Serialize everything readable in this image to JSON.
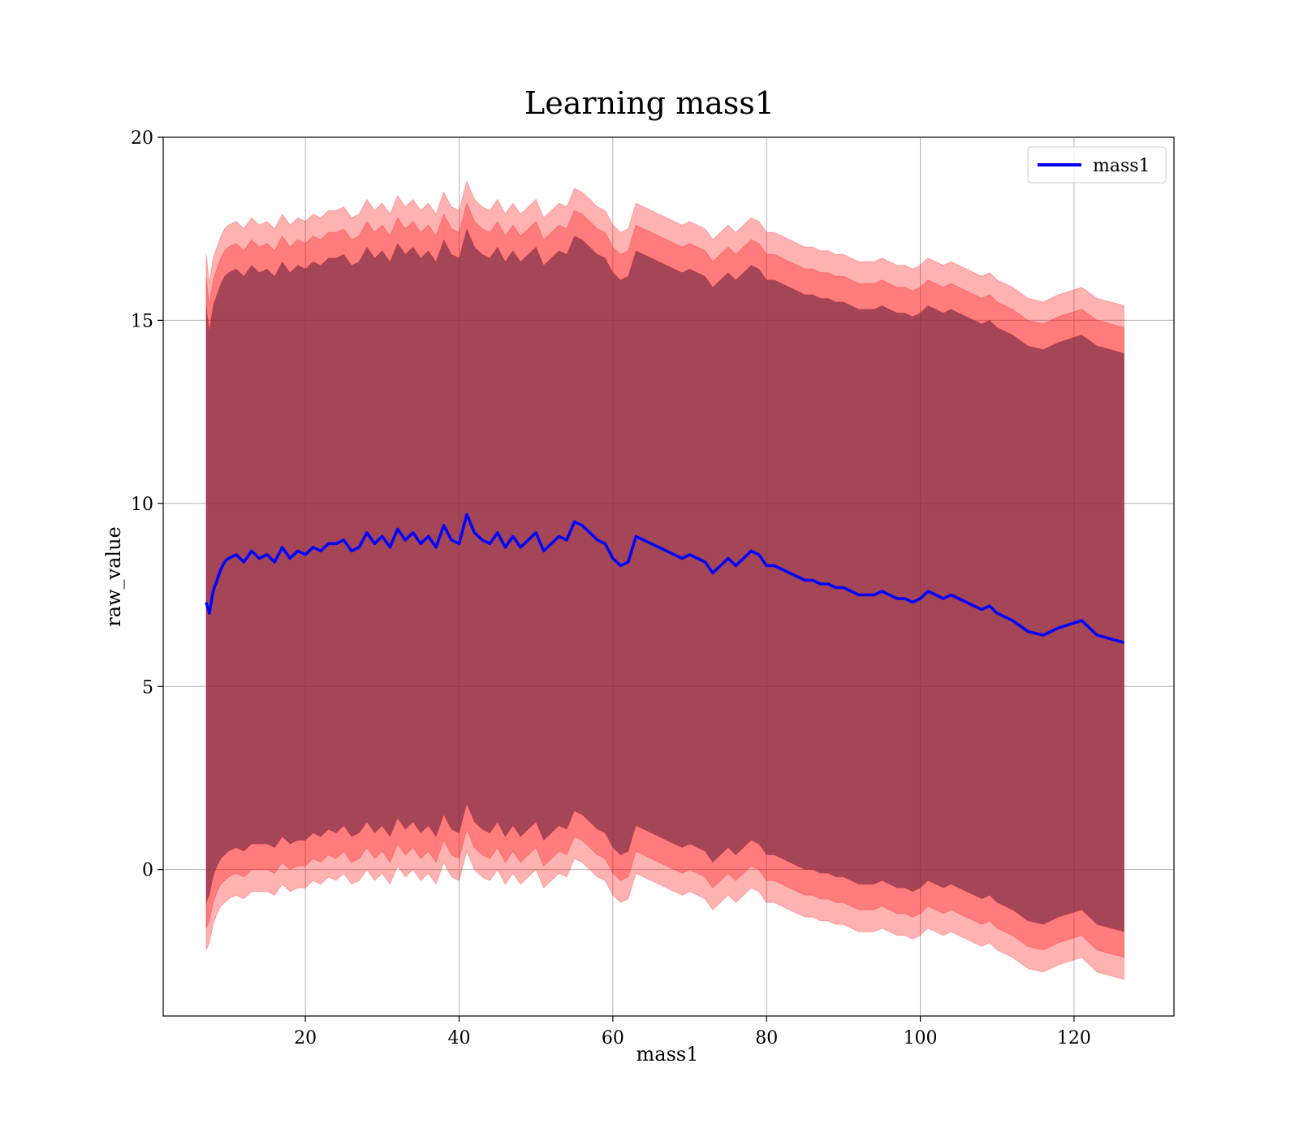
{
  "chart_data": {
    "type": "line",
    "title": "Learning mass1",
    "xlabel": "mass1",
    "ylabel": "raw_value",
    "xlim": [
      1.5,
      133
    ],
    "ylim": [
      -4.0,
      20.0
    ],
    "xticks": [
      20,
      40,
      60,
      80,
      100,
      120
    ],
    "yticks": [
      0,
      5,
      10,
      15,
      20
    ],
    "grid": true,
    "legend_position": "top-right",
    "colors": {
      "line": "#0000ff",
      "band": "#ff0000",
      "grid": "#b0b0b0"
    },
    "series": [
      {
        "name": "mass1",
        "x": [
          7.1,
          7.5,
          8,
          8.5,
          9,
          9.5,
          10,
          11,
          12,
          13,
          14,
          15,
          16,
          17,
          18,
          19,
          20,
          21,
          22,
          23,
          24,
          25,
          26,
          27,
          28,
          29,
          30,
          31,
          32,
          33,
          34,
          35,
          36,
          37,
          38,
          39,
          40,
          41,
          42,
          43,
          44,
          45,
          46,
          47,
          48,
          49,
          50,
          51,
          52,
          53,
          54,
          55,
          56,
          57,
          58,
          59,
          60,
          61,
          62,
          63,
          64,
          65,
          66,
          67,
          68,
          69,
          70,
          71,
          72,
          73,
          74,
          75,
          76,
          77,
          78,
          79,
          80,
          81,
          82,
          83,
          84,
          85,
          86,
          87,
          88,
          89,
          90,
          91,
          92,
          93,
          94,
          95,
          96,
          97,
          98,
          99,
          100,
          101,
          102,
          103,
          104,
          105,
          106,
          107,
          108,
          109,
          110,
          112,
          114,
          116,
          118,
          121,
          123,
          126.5
        ],
        "values": [
          7.3,
          7.0,
          7.6,
          7.9,
          8.2,
          8.4,
          8.5,
          8.6,
          8.4,
          8.7,
          8.5,
          8.6,
          8.4,
          8.8,
          8.5,
          8.7,
          8.6,
          8.8,
          8.7,
          8.9,
          8.9,
          9.0,
          8.7,
          8.8,
          9.2,
          8.9,
          9.1,
          8.8,
          9.3,
          9.0,
          9.2,
          8.9,
          9.1,
          8.8,
          9.4,
          9.0,
          8.9,
          9.7,
          9.2,
          9.0,
          8.9,
          9.2,
          8.8,
          9.1,
          8.8,
          9.0,
          9.2,
          8.7,
          8.9,
          9.1,
          9.0,
          9.5,
          9.4,
          9.2,
          9.0,
          8.9,
          8.5,
          8.3,
          8.4,
          9.1,
          9.0,
          8.9,
          8.8,
          8.7,
          8.6,
          8.5,
          8.6,
          8.5,
          8.4,
          8.1,
          8.3,
          8.5,
          8.3,
          8.5,
          8.7,
          8.6,
          8.3,
          8.3,
          8.2,
          8.1,
          8.0,
          7.9,
          7.9,
          7.8,
          7.8,
          7.7,
          7.7,
          7.6,
          7.5,
          7.5,
          7.5,
          7.6,
          7.5,
          7.4,
          7.4,
          7.3,
          7.4,
          7.6,
          7.5,
          7.4,
          7.5,
          7.4,
          7.3,
          7.2,
          7.1,
          7.2,
          7.0,
          6.8,
          6.5,
          6.4,
          6.6,
          6.8,
          6.4,
          6.2
        ]
      }
    ],
    "bands": [
      {
        "lower": [
          -2.2,
          -2.0,
          -1.5,
          -1.2,
          -1.0,
          -0.9,
          -0.8,
          -0.7,
          -0.8,
          -0.6,
          -0.6,
          -0.6,
          -0.7,
          -0.4,
          -0.6,
          -0.5,
          -0.5,
          -0.3,
          -0.4,
          -0.2,
          -0.3,
          -0.1,
          -0.4,
          -0.3,
          0.0,
          -0.3,
          -0.1,
          -0.4,
          0.1,
          -0.2,
          0.0,
          -0.3,
          -0.1,
          -0.4,
          0.2,
          -0.2,
          -0.3,
          0.5,
          0.0,
          -0.2,
          -0.3,
          0.0,
          -0.4,
          -0.1,
          -0.4,
          -0.2,
          0.0,
          -0.5,
          -0.3,
          -0.1,
          -0.2,
          0.3,
          0.2,
          0.0,
          -0.2,
          -0.3,
          -0.7,
          -0.9,
          -0.8,
          -0.1,
          -0.2,
          -0.3,
          -0.4,
          -0.5,
          -0.6,
          -0.7,
          -0.6,
          -0.7,
          -0.8,
          -1.1,
          -0.9,
          -0.7,
          -0.9,
          -0.7,
          -0.5,
          -0.6,
          -0.9,
          -0.9,
          -1.0,
          -1.1,
          -1.2,
          -1.3,
          -1.3,
          -1.4,
          -1.4,
          -1.5,
          -1.5,
          -1.6,
          -1.7,
          -1.7,
          -1.7,
          -1.6,
          -1.7,
          -1.8,
          -1.8,
          -1.9,
          -1.8,
          -1.6,
          -1.7,
          -1.8,
          -1.7,
          -1.8,
          -1.9,
          -2.0,
          -2.1,
          -2.0,
          -2.2,
          -2.4,
          -2.7,
          -2.8,
          -2.6,
          -2.4,
          -2.8,
          -3.0
        ],
        "upper": [
          16.8,
          16.0,
          16.7,
          17.0,
          17.3,
          17.5,
          17.6,
          17.7,
          17.5,
          17.8,
          17.6,
          17.7,
          17.5,
          17.9,
          17.6,
          17.8,
          17.7,
          17.9,
          17.8,
          18.0,
          18.0,
          18.1,
          17.8,
          17.9,
          18.3,
          18.0,
          18.2,
          17.9,
          18.4,
          18.1,
          18.3,
          18.0,
          18.2,
          17.9,
          18.5,
          18.1,
          18.0,
          18.8,
          18.3,
          18.1,
          18.0,
          18.3,
          17.9,
          18.2,
          17.9,
          18.1,
          18.3,
          17.8,
          18.0,
          18.2,
          18.1,
          18.6,
          18.5,
          18.3,
          18.1,
          18.0,
          17.6,
          17.4,
          17.5,
          18.2,
          18.1,
          18.0,
          17.9,
          17.8,
          17.7,
          17.6,
          17.7,
          17.6,
          17.5,
          17.2,
          17.4,
          17.6,
          17.4,
          17.6,
          17.8,
          17.7,
          17.4,
          17.4,
          17.3,
          17.2,
          17.1,
          17.0,
          17.0,
          16.9,
          16.9,
          16.8,
          16.8,
          16.7,
          16.6,
          16.6,
          16.6,
          16.7,
          16.6,
          16.5,
          16.5,
          16.4,
          16.5,
          16.7,
          16.6,
          16.5,
          16.6,
          16.5,
          16.4,
          16.3,
          16.2,
          16.3,
          16.1,
          15.9,
          15.6,
          15.5,
          15.7,
          15.9,
          15.6,
          15.4
        ]
      },
      {
        "lower": [
          -1.6,
          -1.4,
          -0.9,
          -0.6,
          -0.4,
          -0.3,
          -0.2,
          -0.1,
          -0.2,
          0.0,
          0.0,
          0.0,
          -0.1,
          0.2,
          0.0,
          0.1,
          0.1,
          0.3,
          0.2,
          0.4,
          0.3,
          0.5,
          0.2,
          0.3,
          0.6,
          0.3,
          0.5,
          0.2,
          0.7,
          0.4,
          0.6,
          0.3,
          0.5,
          0.2,
          0.8,
          0.4,
          0.3,
          1.1,
          0.6,
          0.4,
          0.3,
          0.6,
          0.2,
          0.5,
          0.2,
          0.4,
          0.6,
          0.1,
          0.3,
          0.5,
          0.4,
          0.9,
          0.8,
          0.6,
          0.4,
          0.3,
          -0.1,
          -0.3,
          -0.2,
          0.5,
          0.4,
          0.3,
          0.2,
          0.1,
          0.0,
          -0.1,
          0.0,
          -0.1,
          -0.2,
          -0.5,
          -0.3,
          -0.1,
          -0.3,
          -0.1,
          0.1,
          0.0,
          -0.3,
          -0.3,
          -0.4,
          -0.5,
          -0.6,
          -0.7,
          -0.7,
          -0.8,
          -0.8,
          -0.9,
          -0.9,
          -1.0,
          -1.1,
          -1.1,
          -1.1,
          -1.0,
          -1.1,
          -1.2,
          -1.2,
          -1.3,
          -1.2,
          -1.0,
          -1.1,
          -1.2,
          -1.1,
          -1.2,
          -1.3,
          -1.4,
          -1.5,
          -1.4,
          -1.6,
          -1.8,
          -2.1,
          -2.2,
          -2.0,
          -1.8,
          -2.2,
          -2.4
        ],
        "upper": [
          16.2,
          15.4,
          16.1,
          16.4,
          16.7,
          16.9,
          17.0,
          17.1,
          16.9,
          17.2,
          17.0,
          17.1,
          16.9,
          17.3,
          17.0,
          17.2,
          17.1,
          17.3,
          17.2,
          17.4,
          17.4,
          17.5,
          17.2,
          17.3,
          17.7,
          17.4,
          17.6,
          17.3,
          17.8,
          17.5,
          17.7,
          17.4,
          17.6,
          17.3,
          17.9,
          17.5,
          17.4,
          18.2,
          17.7,
          17.5,
          17.4,
          17.7,
          17.3,
          17.6,
          17.3,
          17.5,
          17.7,
          17.2,
          17.4,
          17.6,
          17.5,
          18.0,
          17.9,
          17.7,
          17.5,
          17.4,
          17.0,
          16.8,
          16.9,
          17.6,
          17.5,
          17.4,
          17.3,
          17.2,
          17.1,
          17.0,
          17.1,
          17.0,
          16.9,
          16.6,
          16.8,
          17.0,
          16.8,
          17.0,
          17.2,
          17.1,
          16.8,
          16.8,
          16.7,
          16.6,
          16.5,
          16.4,
          16.4,
          16.3,
          16.3,
          16.2,
          16.2,
          16.1,
          16.0,
          16.0,
          16.0,
          16.1,
          16.0,
          15.9,
          15.9,
          15.8,
          15.9,
          16.1,
          16.0,
          15.9,
          16.0,
          15.9,
          15.8,
          15.7,
          15.6,
          15.7,
          15.5,
          15.3,
          15.0,
          14.9,
          15.1,
          15.3,
          15.0,
          14.8
        ]
      },
      {
        "lower": [
          -0.9,
          -0.7,
          -0.2,
          0.1,
          0.3,
          0.4,
          0.5,
          0.6,
          0.5,
          0.7,
          0.7,
          0.7,
          0.6,
          0.9,
          0.7,
          0.8,
          0.8,
          1.0,
          0.9,
          1.1,
          1.0,
          1.2,
          0.9,
          1.0,
          1.3,
          1.0,
          1.2,
          0.9,
          1.4,
          1.1,
          1.3,
          1.0,
          1.2,
          0.9,
          1.5,
          1.1,
          1.0,
          1.8,
          1.3,
          1.1,
          1.0,
          1.3,
          0.9,
          1.2,
          0.9,
          1.1,
          1.3,
          0.8,
          1.0,
          1.2,
          1.1,
          1.6,
          1.5,
          1.3,
          1.1,
          1.0,
          0.6,
          0.4,
          0.5,
          1.2,
          1.1,
          1.0,
          0.9,
          0.8,
          0.7,
          0.6,
          0.7,
          0.6,
          0.5,
          0.2,
          0.4,
          0.6,
          0.4,
          0.6,
          0.8,
          0.7,
          0.4,
          0.4,
          0.3,
          0.2,
          0.1,
          0.0,
          0.0,
          -0.1,
          -0.1,
          -0.2,
          -0.2,
          -0.3,
          -0.4,
          -0.4,
          -0.4,
          -0.3,
          -0.4,
          -0.5,
          -0.5,
          -0.6,
          -0.5,
          -0.3,
          -0.4,
          -0.5,
          -0.4,
          -0.5,
          -0.6,
          -0.7,
          -0.8,
          -0.7,
          -0.9,
          -1.1,
          -1.4,
          -1.5,
          -1.3,
          -1.1,
          -1.5,
          -1.7
        ],
        "upper": [
          15.4,
          14.7,
          15.4,
          15.7,
          16.0,
          16.2,
          16.3,
          16.4,
          16.2,
          16.5,
          16.3,
          16.4,
          16.2,
          16.6,
          16.3,
          16.5,
          16.4,
          16.6,
          16.5,
          16.7,
          16.7,
          16.8,
          16.5,
          16.6,
          17.0,
          16.7,
          16.9,
          16.6,
          17.1,
          16.8,
          17.0,
          16.7,
          16.9,
          16.6,
          17.2,
          16.8,
          16.7,
          17.5,
          17.0,
          16.8,
          16.7,
          17.0,
          16.6,
          16.9,
          16.6,
          16.8,
          17.0,
          16.5,
          16.7,
          16.9,
          16.8,
          17.3,
          17.2,
          17.0,
          16.8,
          16.7,
          16.3,
          16.1,
          16.2,
          16.9,
          16.8,
          16.7,
          16.6,
          16.5,
          16.4,
          16.3,
          16.4,
          16.3,
          16.2,
          15.9,
          16.1,
          16.3,
          16.1,
          16.3,
          16.5,
          16.4,
          16.1,
          16.1,
          16.0,
          15.9,
          15.8,
          15.7,
          15.7,
          15.6,
          15.6,
          15.5,
          15.5,
          15.4,
          15.3,
          15.3,
          15.3,
          15.4,
          15.3,
          15.2,
          15.2,
          15.1,
          15.2,
          15.4,
          15.3,
          15.2,
          15.3,
          15.2,
          15.1,
          15.0,
          14.9,
          15.0,
          14.8,
          14.6,
          14.3,
          14.2,
          14.4,
          14.6,
          14.3,
          14.1
        ]
      }
    ]
  }
}
